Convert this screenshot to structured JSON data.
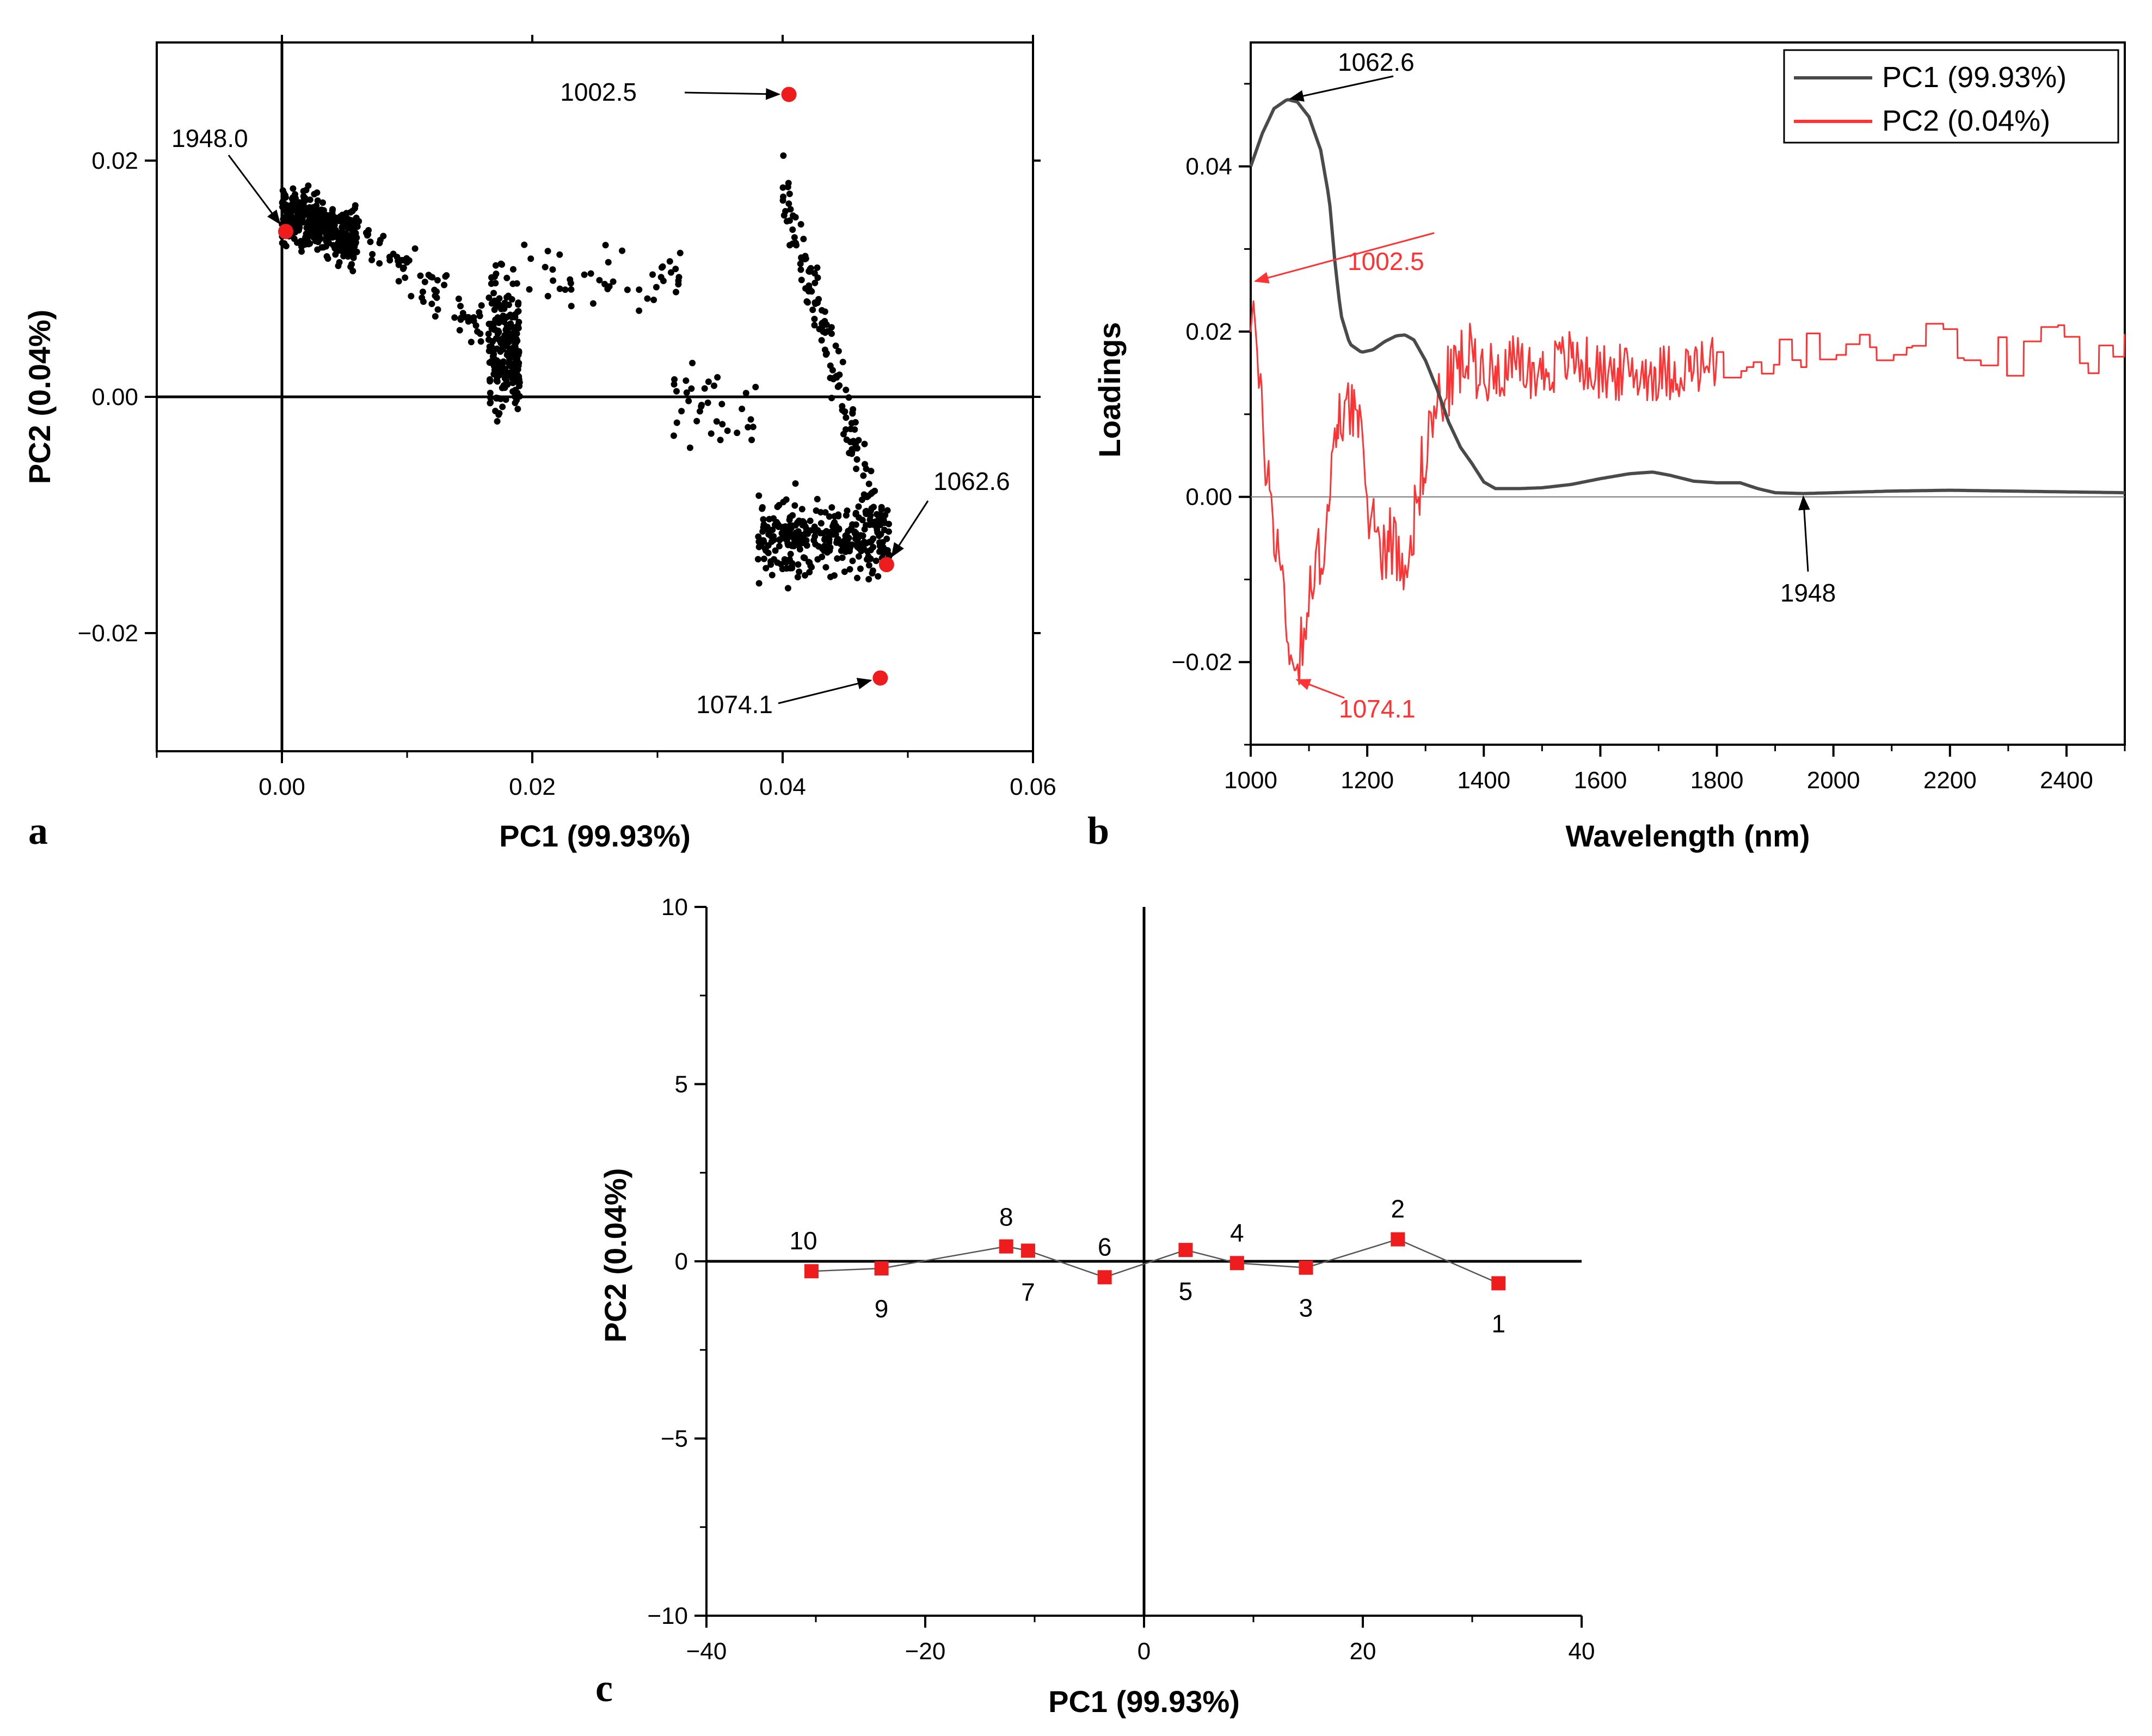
{
  "colors": {
    "pc1": "#4a4a4a",
    "pc2": "#ff3333",
    "marker": "#ee1c1c",
    "points": "#000000",
    "axis": "#000000"
  },
  "chart_data": [
    {
      "panel": "a",
      "type": "scatter",
      "xlabel": "PC1 (99.93%)",
      "ylabel": "PC2 (0.04%)",
      "xlim": [
        -0.01,
        0.06
      ],
      "ylim": [
        -0.03,
        0.03
      ],
      "xticks": [
        "0.00",
        "0.02",
        "0.04",
        "0.06"
      ],
      "yticks": [
        "−0.02",
        "0.00",
        "0.02"
      ],
      "grid": false,
      "zero_lines": true,
      "point_clusters": [
        {
          "x_range": [
            0.0,
            0.006
          ],
          "y_center": 0.0155,
          "y_spread": 0.004,
          "count": 380
        },
        {
          "x_range": [
            0.006,
            0.016
          ],
          "y_center": 0.0105,
          "y_spread": 0.0035,
          "count": 70
        },
        {
          "x_range": [
            0.0165,
            0.019
          ],
          "y_center": 0.004,
          "y_spread": 0.01,
          "count": 230
        },
        {
          "x_range": [
            0.019,
            0.032
          ],
          "y_center": 0.01,
          "y_spread": 0.004,
          "count": 45
        },
        {
          "x_range": [
            0.031,
            0.038
          ],
          "y_center": -0.001,
          "y_spread": 0.006,
          "count": 35
        },
        {
          "x_range": [
            0.04,
            0.048
          ],
          "y_center": 0.004,
          "y_spread": 0.012,
          "count": 140
        },
        {
          "x_range": [
            0.038,
            0.0485
          ],
          "y_center": -0.012,
          "y_spread": 0.0055,
          "count": 300
        }
      ],
      "highlighted_points": [
        {
          "label": "1948.0",
          "x": 0.0003,
          "y": 0.014
        },
        {
          "label": "1002.5",
          "x": 0.0405,
          "y": 0.0256
        },
        {
          "label": "1062.6",
          "x": 0.0483,
          "y": -0.0142
        },
        {
          "label": "1074.1",
          "x": 0.0478,
          "y": -0.0238
        }
      ]
    },
    {
      "panel": "b",
      "type": "line",
      "xlabel": "Wavelength (nm)",
      "ylabel": "Loadings",
      "xlim": [
        1000,
        2500
      ],
      "ylim": [
        -0.03,
        0.055
      ],
      "xticks": [
        "1000",
        "1200",
        "1400",
        "1600",
        "1800",
        "2000",
        "2200",
        "2400"
      ],
      "yticks": [
        "−0.02",
        "0.00",
        "0.02",
        "0.04"
      ],
      "legend_position": "top-right",
      "series": [
        {
          "name": "PC1 (99.93%)",
          "points": [
            [
              1000,
              0.04
            ],
            [
              1020,
              0.044
            ],
            [
              1040,
              0.047
            ],
            [
              1062.6,
              0.0481
            ],
            [
              1080,
              0.0478
            ],
            [
              1100,
              0.046
            ],
            [
              1120,
              0.042
            ],
            [
              1135,
              0.036
            ],
            [
              1145,
              0.028
            ],
            [
              1155,
              0.022
            ],
            [
              1170,
              0.0185
            ],
            [
              1190,
              0.0175
            ],
            [
              1210,
              0.0178
            ],
            [
              1230,
              0.0188
            ],
            [
              1250,
              0.0195
            ],
            [
              1265,
              0.0196
            ],
            [
              1280,
              0.019
            ],
            [
              1300,
              0.0165
            ],
            [
              1320,
              0.013
            ],
            [
              1340,
              0.009
            ],
            [
              1360,
              0.006
            ],
            [
              1380,
              0.004
            ],
            [
              1400,
              0.0018
            ],
            [
              1420,
              0.001
            ],
            [
              1460,
              0.001
            ],
            [
              1500,
              0.0011
            ],
            [
              1550,
              0.0015
            ],
            [
              1600,
              0.0022
            ],
            [
              1650,
              0.0028
            ],
            [
              1690,
              0.003
            ],
            [
              1720,
              0.0026
            ],
            [
              1760,
              0.0019
            ],
            [
              1800,
              0.0017
            ],
            [
              1840,
              0.0017
            ],
            [
              1870,
              0.001
            ],
            [
              1900,
              0.0005
            ],
            [
              1948,
              0.0004
            ],
            [
              2000,
              0.0005
            ],
            [
              2100,
              0.0007
            ],
            [
              2200,
              0.0008
            ],
            [
              2300,
              0.0007
            ],
            [
              2400,
              0.0006
            ],
            [
              2500,
              0.0005
            ]
          ]
        },
        {
          "name": "PC2 (0.04%)",
          "points": [
            [
              1000,
              0.022
            ],
            [
              1002.5,
              0.026
            ],
            [
              1015,
              0.012
            ],
            [
              1030,
              0.002
            ],
            [
              1050,
              -0.008
            ],
            [
              1074.1,
              -0.022
            ],
            [
              1090,
              -0.016
            ],
            [
              1110,
              -0.01
            ],
            [
              1130,
              -0.003
            ],
            [
              1150,
              0.008
            ],
            [
              1165,
              0.013
            ],
            [
              1180,
              0.01
            ],
            [
              1200,
              0.0
            ],
            [
              1220,
              -0.006
            ],
            [
              1240,
              -0.005
            ],
            [
              1260,
              -0.008
            ],
            [
              1280,
              -0.003
            ],
            [
              1300,
              0.006
            ],
            [
              1320,
              0.011
            ],
            [
              1340,
              0.014
            ],
            [
              1360,
              0.016
            ],
            [
              1380,
              0.017
            ],
            [
              1400,
              0.015
            ],
            [
              1450,
              0.016
            ],
            [
              1500,
              0.015
            ],
            [
              1550,
              0.017
            ],
            [
              1600,
              0.015
            ],
            [
              1700,
              0.015
            ],
            [
              1800,
              0.016
            ],
            [
              1900,
              0.016
            ],
            [
              2000,
              0.018
            ],
            [
              2100,
              0.017
            ],
            [
              2200,
              0.019
            ],
            [
              2300,
              0.017
            ],
            [
              2400,
              0.018
            ],
            [
              2500,
              0.017
            ]
          ]
        }
      ],
      "annotations": [
        {
          "text": "1062.6",
          "x": 1062.6,
          "y": 0.0481
        },
        {
          "text": "1002.5",
          "x": 1002.5,
          "y": 0.026
        },
        {
          "text": "1074.1",
          "x": 1074.1,
          "y": -0.022
        },
        {
          "text": "1948",
          "x": 1948,
          "y": 0.0004
        }
      ]
    },
    {
      "panel": "c",
      "type": "line",
      "xlabel": "PC1 (99.93%)",
      "ylabel": "PC2 (0.04%)",
      "xlim": [
        -40,
        40
      ],
      "ylim": [
        -10,
        10
      ],
      "xticks": [
        "−40",
        "−20",
        "0",
        "20",
        "40"
      ],
      "yticks": [
        "−10",
        "−5",
        "0",
        "5",
        "10"
      ],
      "zero_lines": true,
      "points": [
        {
          "label": "10",
          "x": -30.4,
          "y": -0.28
        },
        {
          "label": "9",
          "x": -24.0,
          "y": -0.2
        },
        {
          "label": "8",
          "x": -12.6,
          "y": 0.42
        },
        {
          "label": "7",
          "x": -10.6,
          "y": 0.3
        },
        {
          "label": "6",
          "x": -3.6,
          "y": -0.45
        },
        {
          "label": "5",
          "x": 3.8,
          "y": 0.32
        },
        {
          "label": "4",
          "x": 8.5,
          "y": -0.05
        },
        {
          "label": "3",
          "x": 14.8,
          "y": -0.18
        },
        {
          "label": "2",
          "x": 23.2,
          "y": 0.62
        },
        {
          "label": "1",
          "x": 32.4,
          "y": -0.62
        }
      ]
    }
  ],
  "panel_letters": {
    "a": "a",
    "b": "b",
    "c": "c"
  }
}
